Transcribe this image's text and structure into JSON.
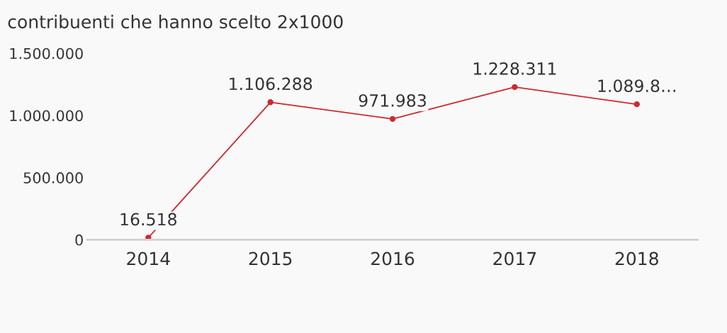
{
  "chart_data": {
    "type": "line",
    "title": "contribuenti che hanno scelto 2x1000",
    "categories": [
      "2014",
      "2015",
      "2016",
      "2017",
      "2018"
    ],
    "series": [
      {
        "color": "#d0282e",
        "values": [
          16518,
          1106288,
          971983,
          1228311,
          1089800
        ],
        "value_labels": [
          "16.518",
          "1.106.288",
          "971.983",
          "1.228.311",
          "1.089.8…"
        ]
      }
    ],
    "ylim": [
      0,
      1500000
    ],
    "yticks": [
      0,
      {
        "value": 500000,
        "label": "500.000"
      },
      {
        "value": 1000000,
        "label": "1.000.000"
      },
      {
        "value": 1500000,
        "label": "1.500.000"
      }
    ],
    "grid": false,
    "legend": false,
    "marker": "circle",
    "line_style": "solid"
  }
}
